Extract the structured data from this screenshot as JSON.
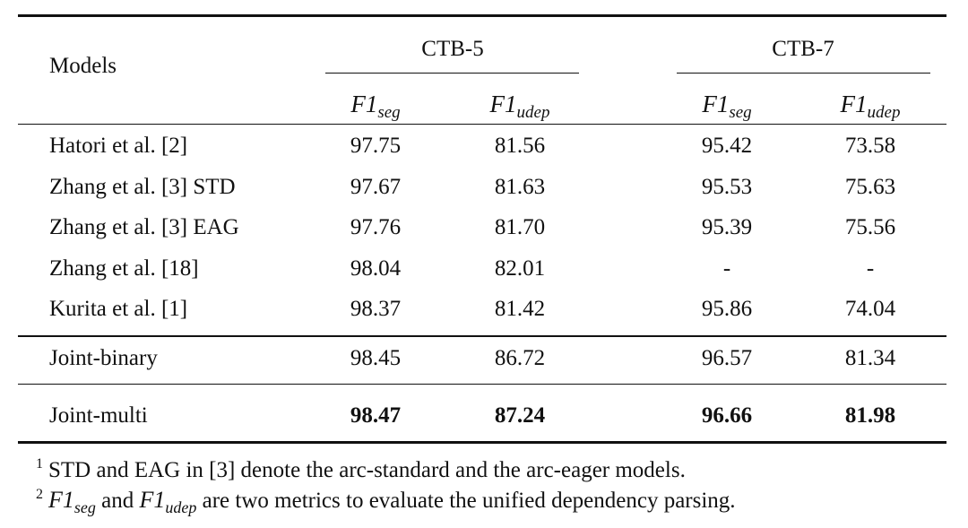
{
  "table": {
    "header": {
      "models_label": "Models",
      "group1": "CTB-5",
      "group2": "CTB-7",
      "metric_base": "F1",
      "metric_seg_sub": "seg",
      "metric_udep_sub": "udep"
    },
    "rows": [
      {
        "model": "Hatori et al. [2]",
        "ctb5_seg": "97.75",
        "ctb5_udep": "81.56",
        "ctb7_seg": "95.42",
        "ctb7_udep": "73.58"
      },
      {
        "model": "Zhang et al. [3] STD",
        "ctb5_seg": "97.67",
        "ctb5_udep": "81.63",
        "ctb7_seg": "95.53",
        "ctb7_udep": "75.63"
      },
      {
        "model": "Zhang et al. [3] EAG",
        "ctb5_seg": "97.76",
        "ctb5_udep": "81.70",
        "ctb7_seg": "95.39",
        "ctb7_udep": "75.56"
      },
      {
        "model": "Zhang et al. [18]",
        "ctb5_seg": "98.04",
        "ctb5_udep": "82.01",
        "ctb7_seg": "-",
        "ctb7_udep": "-"
      },
      {
        "model": "Kurita et al. [1]",
        "ctb5_seg": "98.37",
        "ctb5_udep": "81.42",
        "ctb7_seg": "95.86",
        "ctb7_udep": "74.04"
      },
      {
        "model": "Joint-binary",
        "ctb5_seg": "98.45",
        "ctb5_udep": "86.72",
        "ctb7_seg": "96.57",
        "ctb7_udep": "81.34"
      },
      {
        "model": "Joint-multi",
        "ctb5_seg": "98.47",
        "ctb5_udep": "87.24",
        "ctb7_seg": "96.66",
        "ctb7_udep": "81.98"
      }
    ]
  },
  "footnotes": [
    {
      "mark": "1",
      "text": "STD and EAG in  [3] denote the arc-standard and the arc-eager models."
    },
    {
      "mark": "2",
      "text_after": " and ",
      "text_end": " are two metrics to evaluate the unified dependency parsing."
    }
  ]
}
